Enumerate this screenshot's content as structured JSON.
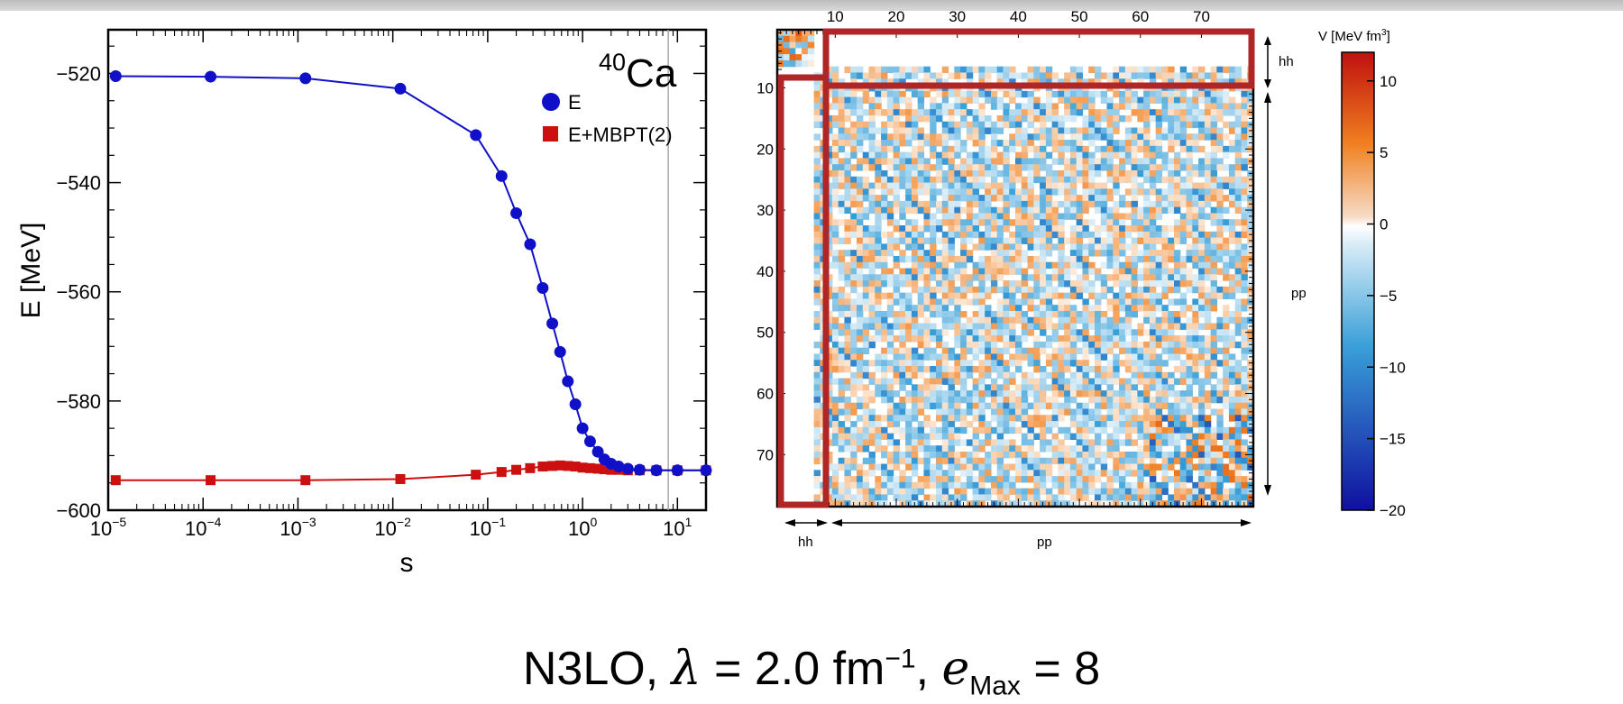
{
  "caption": {
    "model": "N3LO,",
    "lambda_symbol": "λ",
    "lambda_value": "= 2.0 fm",
    "lambda_exp": "−1",
    "emax_symbol": "e",
    "emax_sub": "Max",
    "emax_value": "= 8"
  },
  "chart_data": [
    {
      "type": "line",
      "title": "",
      "annotation": "40Ca",
      "annotation_sup": "40",
      "annotation_base": "Ca",
      "xlabel": "s",
      "ylabel": "E [MeV]",
      "xscale": "log",
      "xlim": [
        1e-05,
        20
      ],
      "ylim": [
        -600,
        -512
      ],
      "yticks": [
        -520,
        -540,
        -560,
        -580,
        -600
      ],
      "ytick_labels": [
        "−520",
        "−540",
        "−560",
        "−580",
        "−600"
      ],
      "xticks": [
        1e-05,
        0.0001,
        0.001,
        0.01,
        0.1,
        1,
        10
      ],
      "xtick_base": "10",
      "xtick_exps": [
        "−5",
        "−4",
        "−3",
        "−2",
        "−1",
        "0",
        "1"
      ],
      "grid": false,
      "legend_position": "top-right",
      "vertical_marker_x": 8,
      "series": [
        {
          "name": "E",
          "color": "#1010c8",
          "marker": "circle",
          "x": [
            1.2e-05,
            0.00012,
            0.0012,
            0.012,
            0.075,
            0.14,
            0.2,
            0.28,
            0.38,
            0.48,
            0.58,
            0.7,
            0.84,
            1.0,
            1.2,
            1.45,
            1.7,
            2.0,
            2.4,
            3.0,
            4.0,
            6.0,
            10.0,
            20.0
          ],
          "y": [
            -520.5,
            -520.6,
            -520.9,
            -522.8,
            -531.3,
            -538.8,
            -545.6,
            -551.3,
            -559.3,
            -565.8,
            -571.0,
            -576.4,
            -580.6,
            -585.0,
            -587.4,
            -589.3,
            -590.7,
            -591.5,
            -592.0,
            -592.4,
            -592.6,
            -592.7,
            -592.7,
            -592.7
          ]
        },
        {
          "name": "E+MBPT(2)",
          "color": "#cc1010",
          "marker": "square",
          "x": [
            1.2e-05,
            0.00012,
            0.0012,
            0.012,
            0.075,
            0.14,
            0.2,
            0.28,
            0.38,
            0.48,
            0.58,
            0.7,
            0.84,
            1.0,
            1.2,
            1.45,
            1.7,
            2.0,
            2.4,
            3.0,
            4.0,
            6.0,
            10.0,
            20.0
          ],
          "y": [
            -594.5,
            -594.5,
            -594.5,
            -594.3,
            -593.5,
            -593.0,
            -592.6,
            -592.3,
            -592.0,
            -591.9,
            -591.8,
            -591.9,
            -592.0,
            -592.2,
            -592.3,
            -592.4,
            -592.5,
            -592.6,
            -592.6,
            -592.7,
            -592.7,
            -592.7,
            -592.7,
            -592.7
          ]
        }
      ]
    },
    {
      "type": "heatmap",
      "title": "",
      "top_tick_labels": [
        "10",
        "20",
        "30",
        "40",
        "50",
        "60",
        "70"
      ],
      "left_tick_labels": [
        "10",
        "20",
        "30",
        "40",
        "50",
        "60",
        "70"
      ],
      "matrix_size": 78,
      "hh_block_size": 6,
      "right_block_labels": [
        "hh",
        "pp"
      ],
      "bottom_block_labels": [
        "hh",
        "pp"
      ],
      "colorbar": {
        "title": "V [MeV fm",
        "title_sup": "3",
        "title_end": "]",
        "range": [
          -20,
          12
        ],
        "ticks": [
          10,
          5,
          0,
          -5,
          -10,
          -15,
          -20
        ],
        "tick_labels": [
          "10",
          "5",
          "0",
          "−5",
          "−10",
          "−15",
          "−20"
        ],
        "colors": {
          "max": "#c01010",
          "mid_pos": "#f08020",
          "zero": "#ffffff",
          "mid_neg": "#3aa0d8",
          "min": "#1010a0"
        }
      },
      "highlight_color": "#b02525"
    }
  ]
}
